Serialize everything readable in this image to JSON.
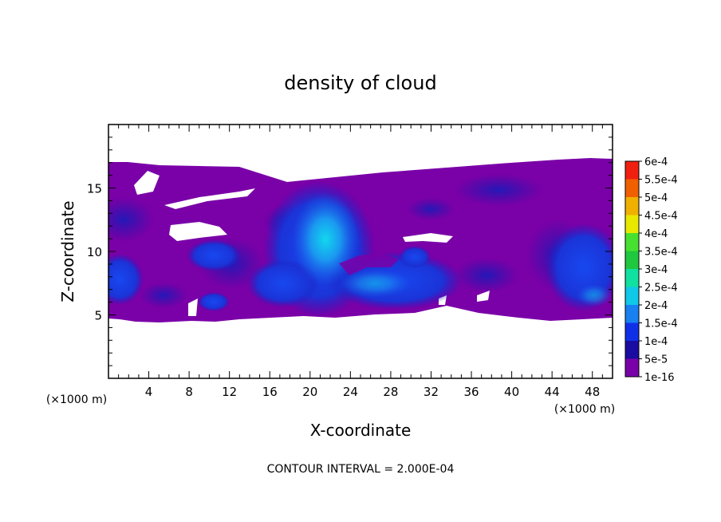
{
  "chart_data": {
    "type": "heatmap",
    "title": "density of cloud",
    "xlabel": "X-coordinate",
    "ylabel": "Z-coordinate",
    "x_unit_left": "(×1000 m)",
    "x_unit_right": "(×1000 m)",
    "footer": "CONTOUR INTERVAL = 2.000E-04",
    "xlim": [
      0,
      50
    ],
    "ylim": [
      0,
      20
    ],
    "x_ticks": [
      4,
      8,
      12,
      16,
      20,
      24,
      28,
      32,
      36,
      40,
      44,
      48
    ],
    "x_tick_labels": [
      "4",
      "8",
      "12",
      "16",
      "20",
      "24",
      "28",
      "32",
      "36",
      "40",
      "44",
      "48"
    ],
    "y_ticks": [
      5,
      10,
      15
    ],
    "y_tick_labels": [
      "5",
      "10",
      "15"
    ],
    "colorbar": {
      "levels": [
        "1e-16",
        "5e-5",
        "1e-4",
        "1.5e-4",
        "2e-4",
        "2.5e-4",
        "3e-4",
        "3.5e-4",
        "4e-4",
        "4.5e-4",
        "5e-4",
        "5.5e-4",
        "6e-4"
      ],
      "colors": [
        "#7a00a8",
        "#1a0ca0",
        "#1030e8",
        "#1880f0",
        "#10c8e8",
        "#10e0a0",
        "#20c840",
        "#48e030",
        "#e8e800",
        "#f0b000",
        "#f06000",
        "#f02010",
        "#f06060"
      ]
    },
    "cloud_layer": {
      "x_range": [
        0,
        50
      ],
      "z_bottom": 4.5,
      "z_top": 17
    },
    "features": [
      {
        "x": 21.5,
        "z": 10.5,
        "value": 0.0002
      },
      {
        "x": 28,
        "z": 7.5,
        "value": 0.00015
      },
      {
        "x": 47,
        "z": 9,
        "value": 0.0001
      },
      {
        "x": 1.5,
        "z": 8,
        "value": 0.0001
      },
      {
        "x": 11,
        "z": 10,
        "value": 0.0001
      },
      {
        "x": 39.5,
        "z": 15,
        "value": 5e-05
      }
    ]
  }
}
